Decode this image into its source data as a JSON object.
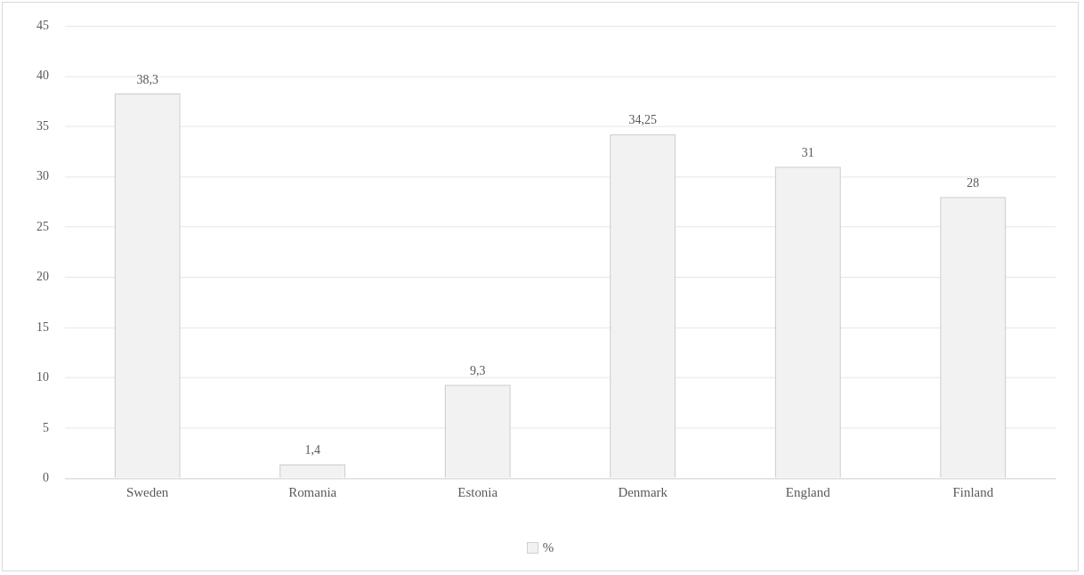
{
  "chart_data": {
    "type": "bar",
    "categories": [
      "Sweden",
      "Romania",
      "Estonia",
      "Denmark",
      "England",
      "Finland"
    ],
    "series": [
      {
        "name": "%",
        "color": "#f2f2f2",
        "values": [
          38.3,
          1.4,
          9.3,
          34.25,
          31,
          28
        ],
        "value_labels": [
          "38,3",
          "1,4",
          "9,3",
          "34,25",
          "31",
          "28"
        ]
      }
    ],
    "ylim": [
      0,
      45
    ],
    "yticks": [
      0,
      5,
      10,
      15,
      20,
      25,
      30,
      35,
      40,
      45
    ],
    "grid": "y",
    "legend": "bottom"
  }
}
